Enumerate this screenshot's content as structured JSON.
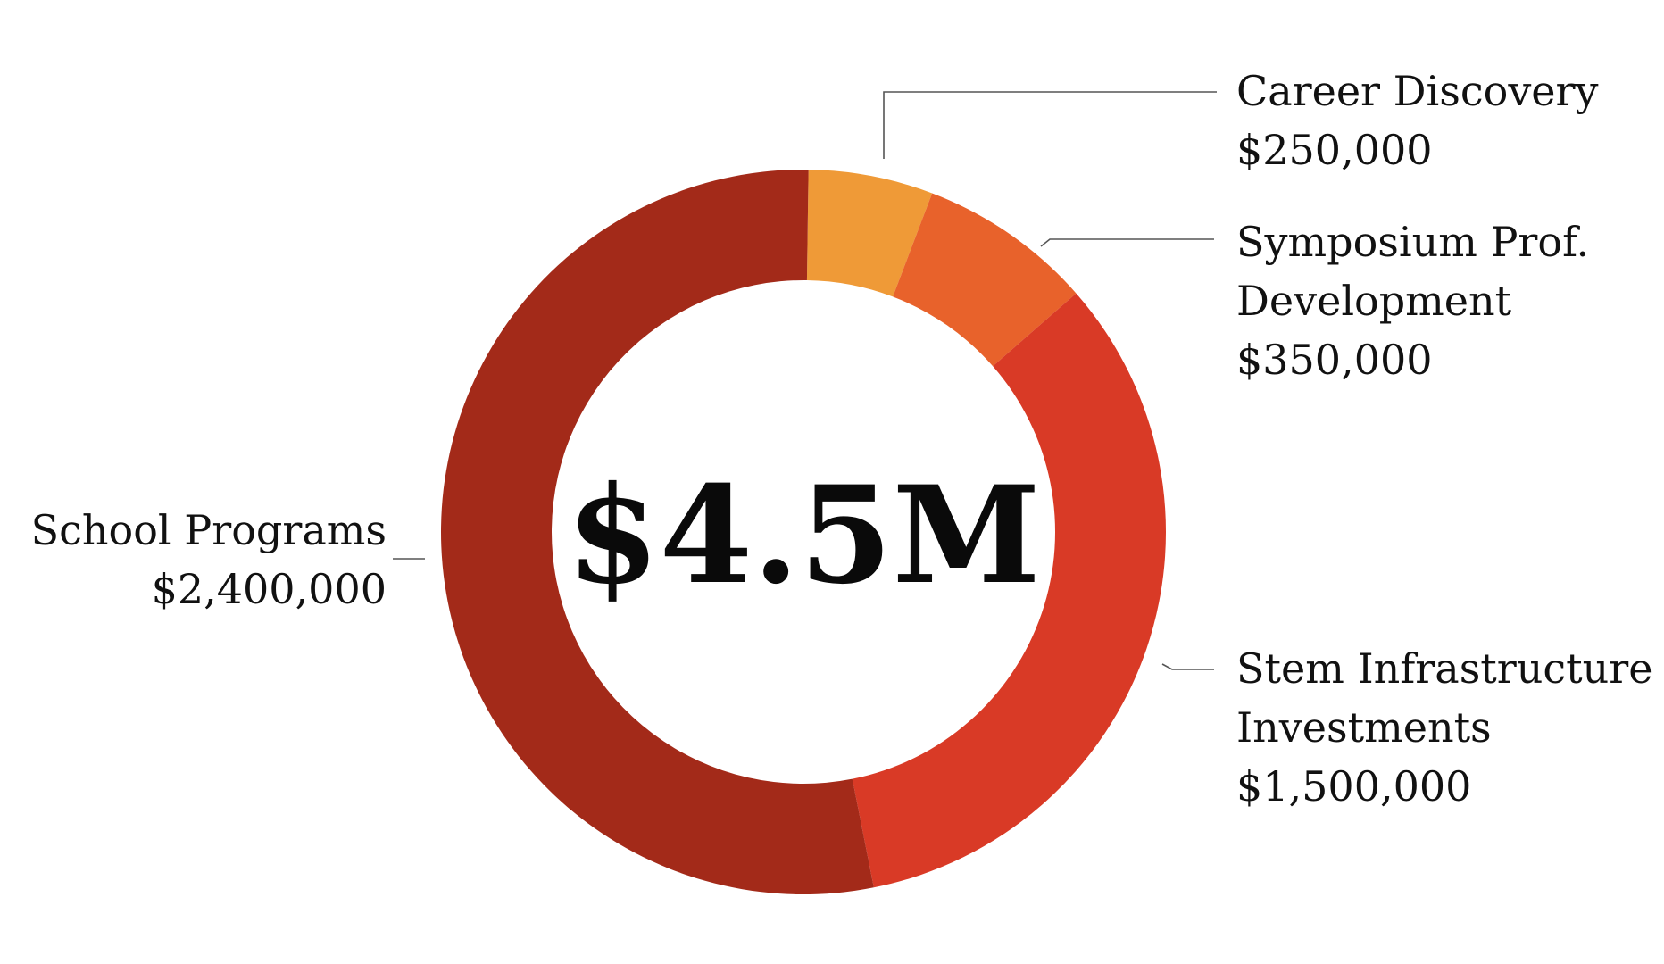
{
  "chart_data": {
    "type": "pie",
    "style": "donut",
    "center_label": "$4.5M",
    "slices": [
      {
        "name": "Career Discovery",
        "label_lines": [
          "Career Discovery"
        ],
        "value": 250000,
        "value_label": "$250,000",
        "color": "#EF9A37"
      },
      {
        "name": "Symposium Prof. Development",
        "label_lines": [
          "Symposium Prof.",
          "Development"
        ],
        "value": 350000,
        "value_label": "$350,000",
        "color": "#E8622B"
      },
      {
        "name": "Stem Infrastructure Investments",
        "label_lines": [
          "Stem Infrastructure",
          "Investments"
        ],
        "value": 1500000,
        "value_label": "$1,500,000",
        "color": "#D93A26"
      },
      {
        "name": "School Programs",
        "label_lines": [
          "School Programs"
        ],
        "value": 2400000,
        "value_label": "$2,400,000",
        "color": "#A32A19"
      }
    ]
  }
}
